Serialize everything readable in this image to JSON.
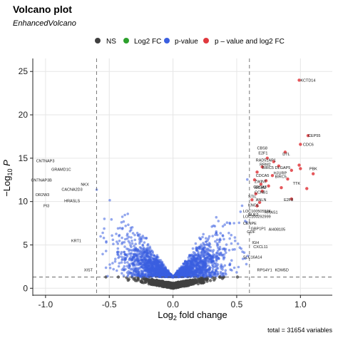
{
  "colors": {
    "ns": "#404040",
    "log2fc": "#2ca02c",
    "pvalue": "#3b5fe0",
    "both": "#e0393e",
    "grid": "#e6e6e6",
    "cutoff": "#555555"
  },
  "chart_data": {
    "type": "scatter",
    "title": "Volcano plot",
    "subtitle": "EnhancedVolcano",
    "xlabel": "Log2 fold change",
    "ylabel": "−Log10 P",
    "xlim": [
      -1.1,
      1.25
    ],
    "ylim": [
      -0.8,
      26.5
    ],
    "xticks": [
      "-1.0",
      "-0.5",
      "0.0",
      "0.5",
      "1.0"
    ],
    "xtick_values": [
      -1.0,
      -0.5,
      0.0,
      0.5,
      1.0
    ],
    "yticks": [
      "0",
      "5",
      "10",
      "15",
      "20",
      "25"
    ],
    "ytick_values": [
      0,
      5,
      10,
      15,
      20,
      25
    ],
    "fc_cutoffs": [
      -0.6,
      0.6
    ],
    "p_cutoff_y": 1.3,
    "grid": true,
    "legend_position": "top",
    "legend": [
      {
        "key": "ns",
        "label": "NS"
      },
      {
        "key": "log2fc",
        "label": "Log2 FC"
      },
      {
        "key": "pvalue",
        "label": "p-value"
      },
      {
        "key": "both",
        "label": "p – value and log2 FC"
      }
    ],
    "caption": "total = 31654 variables",
    "significant_points": [
      {
        "x": 0.99,
        "y": 24.0
      },
      {
        "x": 1.06,
        "y": 17.6
      },
      {
        "x": 1.0,
        "y": 16.6
      },
      {
        "x": 0.88,
        "y": 15.7
      },
      {
        "x": 0.99,
        "y": 14.2
      },
      {
        "x": 1.0,
        "y": 13.8
      },
      {
        "x": 0.93,
        "y": 13.6
      },
      {
        "x": 0.83,
        "y": 14.1
      },
      {
        "x": 0.79,
        "y": 14.6
      },
      {
        "x": 0.74,
        "y": 15.0
      },
      {
        "x": 0.7,
        "y": 14.0
      },
      {
        "x": 0.66,
        "y": 13.4
      },
      {
        "x": 0.78,
        "y": 13.0
      },
      {
        "x": 0.73,
        "y": 12.4
      },
      {
        "x": 0.64,
        "y": 12.5
      },
      {
        "x": 0.69,
        "y": 12.0
      },
      {
        "x": 0.75,
        "y": 11.8
      },
      {
        "x": 0.85,
        "y": 11.6
      },
      {
        "x": 0.93,
        "y": 10.3
      },
      {
        "x": 0.65,
        "y": 10.9
      },
      {
        "x": 0.7,
        "y": 11.2
      },
      {
        "x": 0.68,
        "y": 9.9
      },
      {
        "x": 0.62,
        "y": 10.2
      },
      {
        "x": 1.05,
        "y": 11.5
      },
      {
        "x": 1.1,
        "y": 13.2
      },
      {
        "x": 0.66,
        "y": 9.5
      },
      {
        "x": 0.9,
        "y": 12.6
      }
    ],
    "gene_labels": [
      {
        "text": "KCTD14",
        "x": 1.0,
        "y": 24.0
      },
      {
        "text": "CEP55",
        "x": 1.06,
        "y": 17.6
      },
      {
        "text": "CDC6",
        "x": 1.02,
        "y": 16.6
      },
      {
        "text": "CBS8",
        "x": 0.66,
        "y": 16.2
      },
      {
        "text": "E2F1",
        "x": 0.67,
        "y": 15.6
      },
      {
        "text": "DTL",
        "x": 0.86,
        "y": 15.5
      },
      {
        "text": "PBK",
        "x": 1.07,
        "y": 13.8
      },
      {
        "text": "RAD51AP1",
        "x": 0.65,
        "y": 14.8
      },
      {
        "text": "RRM2",
        "x": 0.68,
        "y": 14.3
      },
      {
        "text": "BIRC5",
        "x": 0.7,
        "y": 13.9
      },
      {
        "text": "DLGAP5",
        "x": 0.8,
        "y": 13.9
      },
      {
        "text": "HJURP",
        "x": 0.79,
        "y": 13.3
      },
      {
        "text": "BIRC5",
        "x": 0.8,
        "y": 12.9
      },
      {
        "text": "CDCA5",
        "x": 0.65,
        "y": 13.0
      },
      {
        "text": "TTK",
        "x": 0.94,
        "y": 12.1
      },
      {
        "text": "ZWINT",
        "x": 0.64,
        "y": 12.3
      },
      {
        "text": "MCM2",
        "x": 0.64,
        "y": 11.6
      },
      {
        "text": "CDCA3",
        "x": 0.63,
        "y": 11.7
      },
      {
        "text": "CCNB1",
        "x": 0.64,
        "y": 11.1
      },
      {
        "text": "E2F8",
        "x": 0.87,
        "y": 10.2
      },
      {
        "text": "STIL",
        "x": 0.59,
        "y": 10.6
      },
      {
        "text": "ANLN",
        "x": 0.65,
        "y": 10.2
      },
      {
        "text": "KNO1",
        "x": 0.59,
        "y": 9.6
      },
      {
        "text": "LOC100505574",
        "x": 0.55,
        "y": 8.9
      },
      {
        "text": "NUF2",
        "x": 0.59,
        "y": 8.5
      },
      {
        "text": "RRAS1",
        "x": 0.72,
        "y": 8.8
      },
      {
        "text": "LOC100292999",
        "x": 0.55,
        "y": 8.3
      },
      {
        "text": "CENPE",
        "x": 0.55,
        "y": 7.5
      },
      {
        "text": "GBP1P1",
        "x": 0.61,
        "y": 6.9
      },
      {
        "text": "AI408105",
        "x": 0.75,
        "y": 6.8
      },
      {
        "text": "GDF",
        "x": 0.58,
        "y": 6.5
      },
      {
        "text": "IGH",
        "x": 0.62,
        "y": 5.3
      },
      {
        "text": "CXCL11",
        "x": 0.63,
        "y": 4.8
      },
      {
        "text": "SLC16A14",
        "x": 0.55,
        "y": 3.6
      },
      {
        "text": "RPS4Y1",
        "x": 0.66,
        "y": 2.1
      },
      {
        "text": "KDM5D",
        "x": 0.8,
        "y": 2.1
      },
      {
        "text": "CNTNAP3",
        "x": -0.93,
        "y": 14.7
      },
      {
        "text": "GRAMD1C",
        "x": -0.8,
        "y": 13.7
      },
      {
        "text": "CNTNAP3B",
        "x": -0.95,
        "y": 12.5
      },
      {
        "text": "NKX",
        "x": -0.66,
        "y": 12.0
      },
      {
        "text": "CACNA2D3",
        "x": -0.71,
        "y": 11.4
      },
      {
        "text": "OR2W3",
        "x": -0.97,
        "y": 10.8
      },
      {
        "text": "HRASLS",
        "x": -0.73,
        "y": 10.1
      },
      {
        "text": "PI3",
        "x": -0.97,
        "y": 9.5
      },
      {
        "text": "KRT1",
        "x": -0.72,
        "y": 5.5
      },
      {
        "text": "XIST",
        "x": -0.63,
        "y": 2.1
      }
    ]
  }
}
